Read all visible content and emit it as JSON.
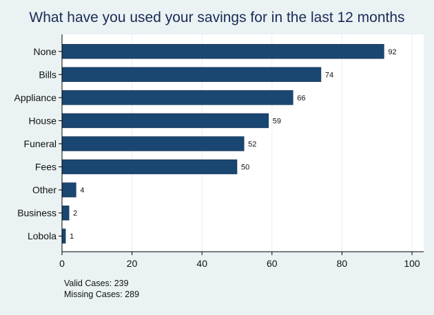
{
  "chart_data": {
    "type": "bar",
    "orientation": "horizontal",
    "title": "What have you used your savings for in the last 12 months",
    "xlabel": "",
    "ylabel": "",
    "categories": [
      "None",
      "Bills",
      "Appliance",
      "House",
      "Funeral",
      "Fees",
      "Other",
      "Business",
      "Lobola"
    ],
    "values": [
      92,
      74,
      66,
      59,
      52,
      50,
      4,
      2,
      1
    ],
    "xlim": [
      0,
      100
    ],
    "xticks": [
      0,
      20,
      40,
      60,
      80,
      100
    ],
    "data_labels": true,
    "grid": "vertical",
    "legend": "none",
    "colors": {
      "bar": "#1a4672",
      "background": "#eaf2f3",
      "plot_background": "#ffffff",
      "grid": "#e6eef0",
      "title": "#1a2b55"
    }
  },
  "notes": {
    "valid_cases": "Valid Cases: 239",
    "missing_cases": "Missing Cases: 289"
  }
}
